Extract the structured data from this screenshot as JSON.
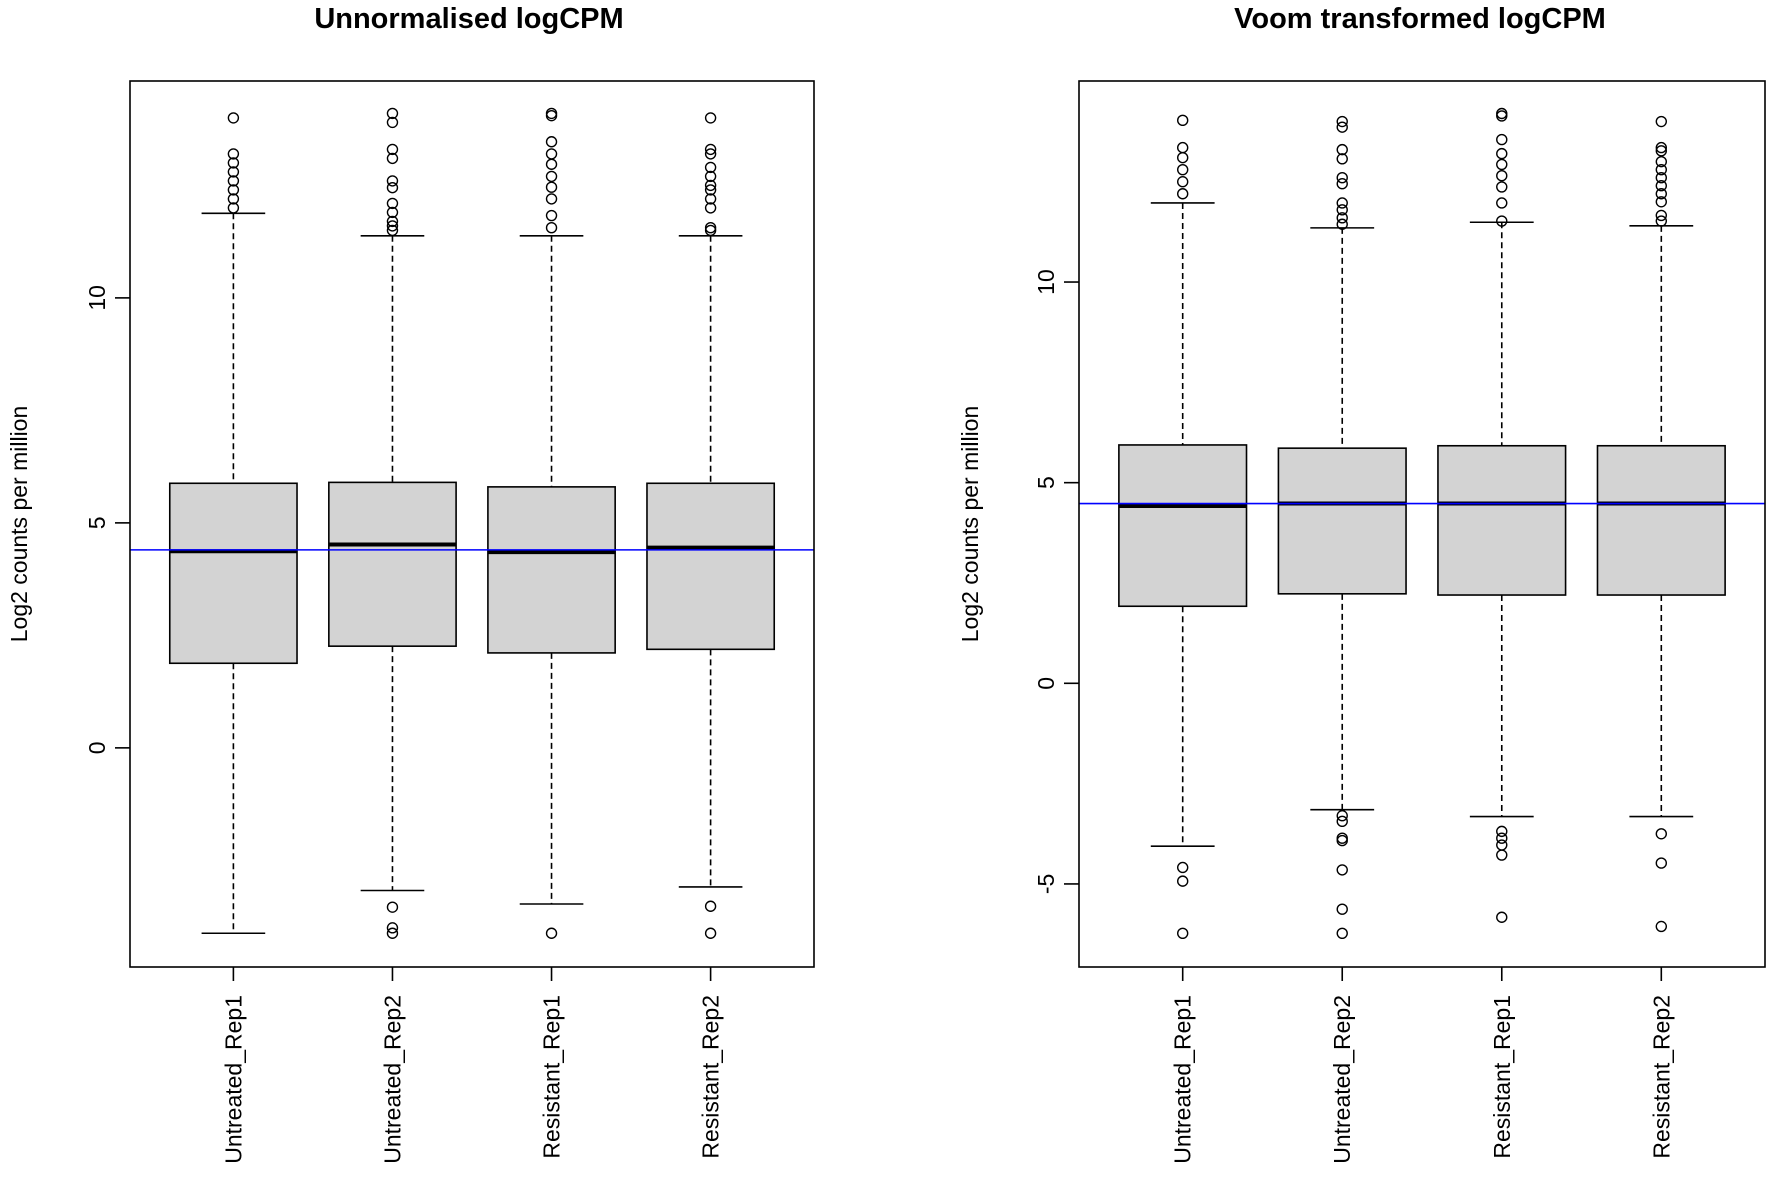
{
  "chart_data": [
    {
      "type": "boxplot",
      "title": "Unnormalised logCPM",
      "xlabel": "",
      "ylabel": "Log2 counts per million",
      "ylim": [
        -4.87,
        14.82
      ],
      "yticks": [
        0,
        5,
        10
      ],
      "grid": false,
      "reference_line": {
        "y": 4.4,
        "color": "#0000ff"
      },
      "categories": [
        "Untreated_Rep1",
        "Untreated_Rep2",
        "Resistant_Rep1",
        "Resistant_Rep2"
      ],
      "boxes": [
        {
          "lower_whisker": -4.12,
          "q1": 1.88,
          "median": 4.37,
          "q3": 5.88,
          "upper_whisker": 11.88,
          "outliers": [
            14.0,
            13.2,
            13.0,
            12.8,
            12.6,
            12.4,
            12.2,
            12.0
          ]
        },
        {
          "lower_whisker": -3.17,
          "q1": 2.26,
          "median": 4.52,
          "q3": 5.9,
          "upper_whisker": 11.38,
          "outliers": [
            14.1,
            13.9,
            13.3,
            13.1,
            12.6,
            12.45,
            12.1,
            11.9,
            11.7,
            11.6,
            11.5,
            -3.54,
            -4.0,
            -4.12
          ]
        },
        {
          "lower_whisker": -3.47,
          "q1": 2.11,
          "median": 4.35,
          "q3": 5.8,
          "upper_whisker": 11.38,
          "outliers": [
            14.1,
            14.05,
            13.47,
            13.2,
            12.97,
            12.7,
            12.46,
            12.2,
            11.83,
            11.56,
            -4.12
          ]
        },
        {
          "lower_whisker": -3.09,
          "q1": 2.19,
          "median": 4.45,
          "q3": 5.88,
          "upper_whisker": 11.38,
          "outliers": [
            14.0,
            13.3,
            13.2,
            12.9,
            12.7,
            12.5,
            12.4,
            12.2,
            12.0,
            11.56,
            11.5,
            -3.52,
            -4.12
          ]
        }
      ]
    },
    {
      "type": "boxplot",
      "title": "Voom transformed logCPM",
      "xlabel": "",
      "ylabel": "Log2 counts per million",
      "ylim": [
        -7.07,
        15.01
      ],
      "yticks": [
        -5,
        0,
        5,
        10
      ],
      "grid": false,
      "reference_line": {
        "y": 4.48,
        "color": "#0000ff"
      },
      "categories": [
        "Untreated_Rep1",
        "Untreated_Rep2",
        "Resistant_Rep1",
        "Resistant_Rep2"
      ],
      "boxes": [
        {
          "lower_whisker": -4.06,
          "q1": 1.92,
          "median": 4.42,
          "q3": 5.94,
          "upper_whisker": 11.97,
          "outliers": [
            14.03,
            13.35,
            13.1,
            12.8,
            12.5,
            12.2,
            -4.59,
            -4.93,
            -6.23
          ]
        },
        {
          "lower_whisker": -3.15,
          "q1": 2.23,
          "median": 4.48,
          "q3": 5.86,
          "upper_whisker": 11.35,
          "outliers": [
            14.0,
            13.86,
            13.3,
            13.07,
            12.6,
            12.45,
            11.97,
            11.8,
            11.6,
            11.44,
            -3.3,
            -3.44,
            -3.86,
            -3.92,
            -4.65,
            -5.63,
            -6.23
          ]
        },
        {
          "lower_whisker": -3.32,
          "q1": 2.2,
          "median": 4.48,
          "q3": 5.92,
          "upper_whisker": 11.49,
          "outliers": [
            14.2,
            14.14,
            13.55,
            13.2,
            12.93,
            12.65,
            12.37,
            11.97,
            11.52,
            -3.69,
            -3.86,
            -4.03,
            -4.28,
            -5.83
          ]
        },
        {
          "lower_whisker": -3.32,
          "q1": 2.2,
          "median": 4.48,
          "q3": 5.92,
          "upper_whisker": 11.4,
          "outliers": [
            14.0,
            13.35,
            13.27,
            13.0,
            12.8,
            12.6,
            12.4,
            12.2,
            12.0,
            11.66,
            11.52,
            -3.75,
            -4.48,
            -6.06
          ]
        }
      ]
    }
  ]
}
